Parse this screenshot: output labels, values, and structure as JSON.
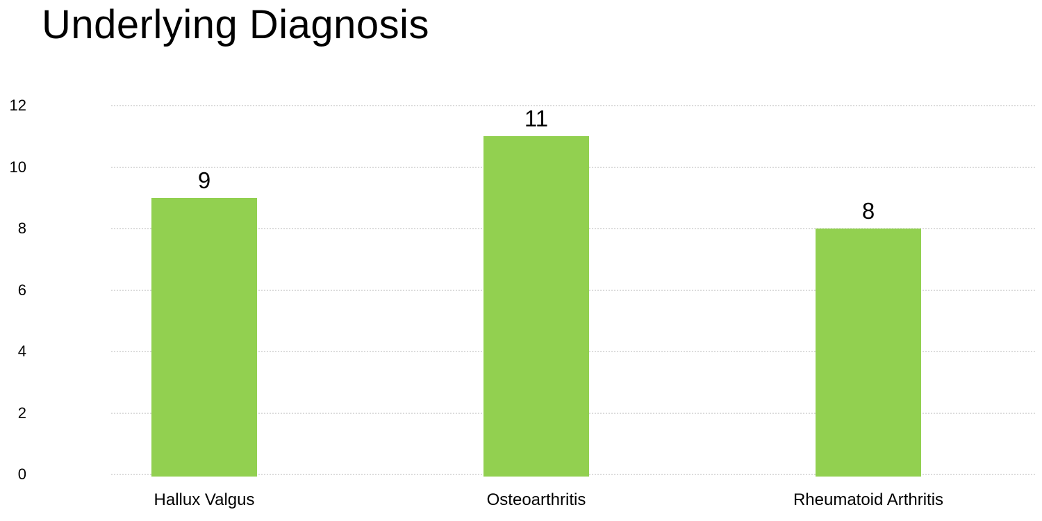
{
  "chart_data": {
    "type": "bar",
    "title": "Underlying Diagnosis",
    "categories": [
      "Hallux Valgus",
      "Osteoarthritis",
      "Rheumatoid Arthritis"
    ],
    "values": [
      9,
      11,
      8
    ],
    "xlabel": "",
    "ylabel": "",
    "ylim": [
      0,
      12
    ],
    "yticks": [
      0,
      2,
      4,
      6,
      8,
      10,
      12
    ],
    "grid": "horizontal-dotted",
    "legend_position": "none",
    "data_labels": true,
    "colors": {
      "bar": "#92D050",
      "gridline": "#dcdcdc",
      "text": "#000000",
      "background": "#ffffff"
    }
  }
}
